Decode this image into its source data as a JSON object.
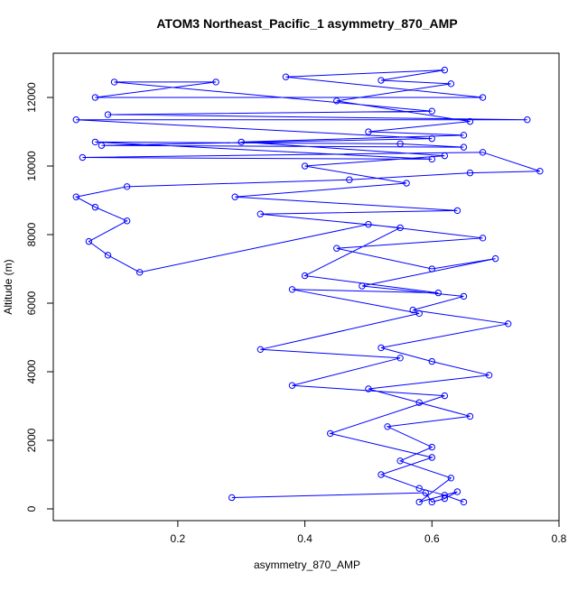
{
  "chart_data": {
    "type": "line",
    "title": "ATOM3 Northeast_Pacific_1 asymmetry_870_AMP",
    "x_label": "asymmetry_870_AMP",
    "y_label": "Altitude (m)",
    "color": "#0000ff",
    "x": [
      0.285,
      0.59,
      0.6,
      0.62,
      0.64,
      0.58,
      0.63,
      0.55,
      0.6,
      0.53,
      0.66,
      0.58,
      0.5,
      0.69,
      0.6,
      0.52,
      0.72,
      0.57,
      0.65,
      0.49,
      0.7,
      0.6,
      0.45,
      0.68,
      0.5,
      0.14,
      0.09,
      0.06,
      0.12,
      0.07,
      0.04,
      0.12,
      0.47,
      0.66,
      0.77,
      0.68,
      0.05,
      0.6,
      0.07,
      0.55,
      0.65,
      0.08,
      0.6,
      0.04,
      0.75,
      0.09,
      0.6,
      0.1,
      0.26,
      0.07,
      0.68,
      0.37,
      0.62,
      0.52,
      0.63,
      0.45,
      0.66,
      0.5,
      0.65,
      0.3,
      0.62,
      0.4,
      0.56,
      0.29,
      0.64,
      0.33,
      0.55,
      0.4,
      0.61,
      0.38,
      0.58,
      0.33,
      0.55,
      0.38,
      0.62,
      0.44,
      0.6,
      0.52,
      0.58,
      0.62,
      0.65
    ],
    "values": [
      330,
      470,
      200,
      300,
      500,
      200,
      900,
      1400,
      1800,
      2400,
      2700,
      3100,
      3500,
      3900,
      4300,
      4700,
      5400,
      5800,
      6200,
      6500,
      7300,
      7000,
      7600,
      7900,
      8300,
      6900,
      7400,
      7800,
      8400,
      8800,
      9100,
      9400,
      9600,
      9800,
      9850,
      10400,
      10250,
      10200,
      10700,
      10650,
      10550,
      10600,
      10800,
      11350,
      11350,
      11500,
      11600,
      12450,
      12450,
      12000,
      12000,
      12600,
      12800,
      12500,
      12400,
      11900,
      11300,
      11000,
      10900,
      10700,
      10300,
      10000,
      9500,
      9100,
      8700,
      8600,
      8200,
      6800,
      6300,
      6400,
      5700,
      4650,
      4400,
      3600,
      3300,
      2200,
      1500,
      1000,
      600,
      400,
      200
    ],
    "xlim": [
      0.004,
      0.8
    ],
    "ylim": [
      -342,
      13290
    ],
    "xticks": [
      0.2,
      0.4,
      0.6,
      0.8
    ],
    "yticks": [
      0,
      2000,
      4000,
      6000,
      8000,
      10000,
      12000
    ]
  }
}
